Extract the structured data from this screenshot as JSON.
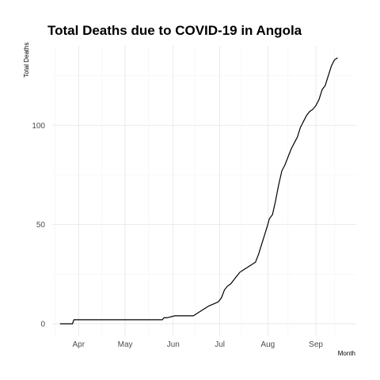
{
  "chart_data": {
    "type": "line",
    "title": "Total Deaths due to COVID-19 in Angola",
    "xlabel": "Month",
    "ylabel": "Total Deaths",
    "x_ticks": [
      {
        "label": "Apr",
        "date": "2020-04-01"
      },
      {
        "label": "May",
        "date": "2020-05-01"
      },
      {
        "label": "Jun",
        "date": "2020-06-01"
      },
      {
        "label": "Jul",
        "date": "2020-07-01"
      },
      {
        "label": "Aug",
        "date": "2020-08-01"
      },
      {
        "label": "Sep",
        "date": "2020-09-01"
      }
    ],
    "y_ticks": [
      0,
      50,
      100
    ],
    "xlim": [
      "2020-03-15",
      "2020-09-27"
    ],
    "ylim": [
      -6,
      140
    ],
    "grid": true,
    "series": [
      {
        "x": [
          "2020-03-20",
          "2020-03-28",
          "2020-03-29",
          "2020-04-10",
          "2020-04-25",
          "2020-05-10",
          "2020-05-20",
          "2020-05-25",
          "2020-05-26",
          "2020-05-28",
          "2020-06-02",
          "2020-06-06",
          "2020-06-10",
          "2020-06-12",
          "2020-06-14",
          "2020-06-16",
          "2020-06-18",
          "2020-06-20",
          "2020-06-22",
          "2020-06-24",
          "2020-06-27",
          "2020-06-30",
          "2020-07-02",
          "2020-07-04",
          "2020-07-06",
          "2020-07-08",
          "2020-07-10",
          "2020-07-12",
          "2020-07-14",
          "2020-07-16",
          "2020-07-18",
          "2020-07-20",
          "2020-07-22",
          "2020-07-24",
          "2020-07-26",
          "2020-07-28",
          "2020-07-30",
          "2020-08-01",
          "2020-08-02",
          "2020-08-04",
          "2020-08-06",
          "2020-08-08",
          "2020-08-10",
          "2020-08-12",
          "2020-08-14",
          "2020-08-16",
          "2020-08-18",
          "2020-08-20",
          "2020-08-22",
          "2020-08-24",
          "2020-08-26",
          "2020-08-28",
          "2020-08-30",
          "2020-09-01",
          "2020-09-03",
          "2020-09-05",
          "2020-09-07",
          "2020-09-09",
          "2020-09-11",
          "2020-09-13",
          "2020-09-15"
        ],
        "values": [
          0,
          0,
          2,
          2,
          2,
          2,
          2,
          2,
          3,
          3,
          4,
          4,
          4,
          4,
          4,
          5,
          6,
          7,
          8,
          9,
          10,
          11,
          13,
          17,
          19,
          20,
          22,
          24,
          26,
          27,
          28,
          29,
          30,
          31,
          35,
          40,
          45,
          50,
          53,
          55,
          62,
          70,
          77,
          80,
          84,
          88,
          91,
          94,
          99,
          102,
          105,
          107,
          108,
          110,
          113,
          118,
          120,
          125,
          130,
          133,
          134
        ]
      }
    ]
  }
}
